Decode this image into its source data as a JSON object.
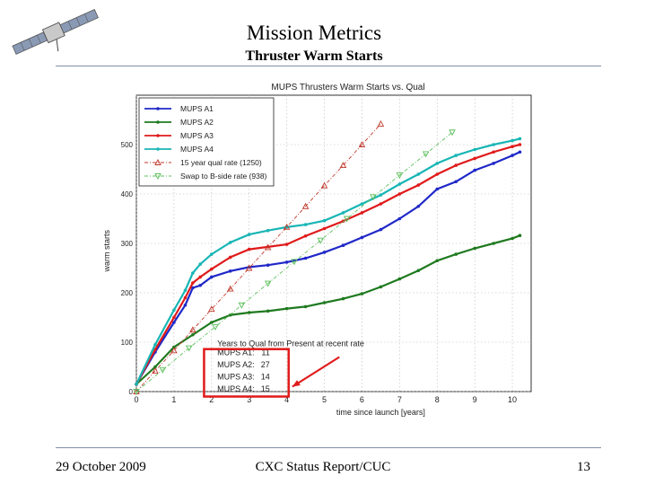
{
  "slide": {
    "title": "Mission Metrics",
    "subtitle": "Thruster Warm Starts",
    "footer_left": "29 October 2009",
    "footer_center": "CXC Status Report/CUC",
    "footer_right": "13",
    "logo_icon": "satellite-icon"
  },
  "chart_data": {
    "type": "line",
    "title": "MUPS Thrusters Warm Starts vs. Qual",
    "xlabel": "time since launch [years]",
    "ylabel": "warm starts",
    "xlim": [
      0,
      10.5
    ],
    "ylim": [
      0,
      600
    ],
    "xticks": [
      0,
      1,
      2,
      3,
      4,
      5,
      6,
      7,
      8,
      9,
      10
    ],
    "yticks": [
      0,
      100,
      200,
      300,
      400,
      500
    ],
    "grid": true,
    "legend_position": "top-left",
    "series": [
      {
        "name": "MUPS A1",
        "color": "#1f28c8",
        "marker": "dot",
        "x": [
          0,
          0.5,
          1,
          1.3,
          1.5,
          1.7,
          2,
          2.5,
          3,
          3.5,
          4,
          4.5,
          5,
          5.5,
          6,
          6.5,
          7,
          7.5,
          8,
          8.5,
          9,
          9.5,
          10,
          10.2
        ],
        "y": [
          15,
          80,
          140,
          175,
          210,
          215,
          232,
          244,
          252,
          256,
          262,
          270,
          282,
          296,
          312,
          328,
          350,
          375,
          410,
          425,
          448,
          462,
          478,
          485
        ]
      },
      {
        "name": "MUPS A2",
        "color": "#1f7a1f",
        "marker": "dot",
        "x": [
          0,
          0.5,
          1,
          1.5,
          2,
          2.5,
          3,
          3.5,
          4,
          4.5,
          5,
          5.5,
          6,
          6.5,
          7,
          7.5,
          8,
          8.5,
          9,
          9.5,
          10,
          10.2
        ],
        "y": [
          15,
          50,
          90,
          115,
          140,
          155,
          160,
          163,
          168,
          172,
          180,
          188,
          198,
          212,
          228,
          245,
          265,
          278,
          290,
          300,
          310,
          316
        ]
      },
      {
        "name": "MUPS A3",
        "color": "#e01a1a",
        "marker": "dot",
        "x": [
          0,
          0.5,
          1,
          1.3,
          1.5,
          1.7,
          2,
          2.5,
          3,
          3.5,
          4,
          4.5,
          5,
          5.5,
          6,
          6.5,
          7,
          7.5,
          8,
          8.5,
          9,
          9.5,
          10,
          10.2
        ],
        "y": [
          15,
          85,
          150,
          190,
          220,
          232,
          248,
          272,
          288,
          293,
          298,
          315,
          330,
          345,
          362,
          380,
          400,
          418,
          440,
          458,
          472,
          485,
          496,
          500
        ]
      },
      {
        "name": "MUPS A4",
        "color": "#18b5b5",
        "marker": "dot",
        "x": [
          0,
          0.5,
          1,
          1.3,
          1.5,
          1.7,
          2,
          2.5,
          3,
          3.5,
          4,
          4.5,
          5,
          5.5,
          6,
          6.5,
          7,
          7.5,
          8,
          8.5,
          9,
          9.5,
          10,
          10.2
        ],
        "y": [
          15,
          95,
          165,
          205,
          240,
          258,
          278,
          302,
          318,
          326,
          333,
          338,
          346,
          362,
          380,
          398,
          420,
          440,
          462,
          478,
          490,
          500,
          508,
          512
        ]
      },
      {
        "name": "15 year qual rate (1250)",
        "color": "#c0392b",
        "marker": "triangle-up",
        "dashed": true,
        "x": [
          0,
          0.5,
          1,
          1.5,
          2,
          2.5,
          3,
          3.5,
          4,
          4.5,
          5,
          5.5,
          6,
          6.5
        ],
        "y": [
          0,
          42,
          83,
          125,
          167,
          208,
          250,
          292,
          333,
          375,
          417,
          458,
          500,
          542
        ]
      },
      {
        "name": "Swap to B-side rate (938)",
        "color": "#5bbf5b",
        "marker": "triangle-down",
        "dashed": true,
        "x": [
          0,
          0.7,
          1.4,
          2.1,
          2.8,
          3.5,
          4.2,
          4.9,
          5.6,
          6.3,
          7,
          7.7,
          8.4
        ],
        "y": [
          0,
          44,
          88,
          131,
          175,
          219,
          263,
          306,
          350,
          394,
          438,
          481,
          525
        ]
      }
    ],
    "annotation": {
      "title": "Years to Qual from Present at recent rate",
      "rows": [
        {
          "label": "MUPS A1:",
          "value": "11"
        },
        {
          "label": "MUPS A2:",
          "value": "27"
        },
        {
          "label": "MUPS A3:",
          "value": "14"
        },
        {
          "label": "MUPS A4:",
          "value": "15"
        }
      ],
      "highlight_color": "#e01a1a"
    }
  }
}
